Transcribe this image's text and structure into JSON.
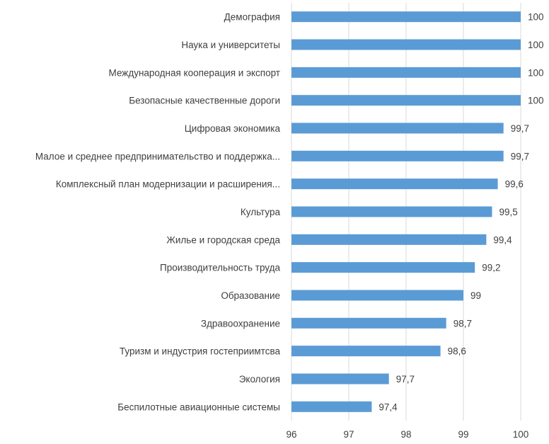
{
  "chart_data": {
    "type": "bar",
    "orientation": "horizontal",
    "title": "",
    "xlabel": "",
    "ylabel": "",
    "categories": [
      "Демография",
      "Наука и университеты",
      "Международная кооперация и экспорт",
      "Безопасные качественные дороги",
      "Цифровая экономика",
      "Малое и среднее предпринимательство и поддержка...",
      "Комплексный план модернизации и расширения...",
      "Культура",
      "Жилье и городская среда",
      "Производительность труда",
      "Образование",
      "Здравоохранение",
      "Туризм и индустрия гостеприимтсва",
      "Экология",
      "Беспилотные авиационные системы"
    ],
    "values": [
      100,
      100,
      100,
      100,
      99.7,
      99.7,
      99.6,
      99.5,
      99.4,
      99.2,
      99,
      98.7,
      98.6,
      97.7,
      97.4
    ],
    "value_labels": [
      "100",
      "100",
      "100",
      "100",
      "99,7",
      "99,7",
      "99,6",
      "99,5",
      "99,4",
      "99,2",
      "99",
      "98,7",
      "98,6",
      "97,7",
      "97,4"
    ],
    "xlim": [
      96,
      100
    ],
    "x_ticks": [
      "96",
      "97",
      "98",
      "99",
      "100"
    ],
    "grid": "vertical",
    "legend": "none",
    "bar_color": "#5b9bd5"
  }
}
